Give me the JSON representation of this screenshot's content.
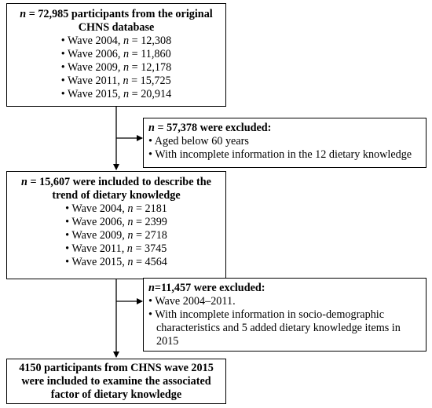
{
  "box1": {
    "n_label": "n",
    "title_rest": " = 72,985 participants from the original",
    "title_line2": "CHNS database",
    "waves": [
      {
        "prefix": "• Wave 2004, ",
        "n": "n",
        "value": " = 12,308"
      },
      {
        "prefix": "• Wave 2006, ",
        "n": "n",
        "value": " = 11,860"
      },
      {
        "prefix": "• Wave 2009, ",
        "n": "n",
        "value": " = 12,178"
      },
      {
        "prefix": "• Wave 2011, ",
        "n": "n",
        "value": " = 15,725"
      },
      {
        "prefix": "• Wave 2015, ",
        "n": "n",
        "value": " = 20,914"
      }
    ]
  },
  "exclusion1": {
    "n_label": "n",
    "header_rest": " = 57,378 were excluded:",
    "items": [
      "• Aged below 60 years",
      "• With incomplete information in the 12 dietary knowledge"
    ]
  },
  "box2": {
    "n_label": "n",
    "title_rest": " = 15,607 were included to describe the",
    "title_line2": "trend of dietary knowledge",
    "waves": [
      {
        "prefix": "• Wave 2004, ",
        "n": "n",
        "value": " = 2181"
      },
      {
        "prefix": "• Wave 2006, ",
        "n": "n",
        "value": " = 2399"
      },
      {
        "prefix": "• Wave 2009, ",
        "n": "n",
        "value": " = 2718"
      },
      {
        "prefix": "• Wave 2011, ",
        "n": "n",
        "value": " = 3745"
      },
      {
        "prefix": "• Wave 2015, ",
        "n": "n",
        "value": " = 4564"
      }
    ]
  },
  "exclusion2": {
    "n_label": "n",
    "header_rest": "=11,457 were excluded:",
    "items": [
      "• Wave 2004–2011.",
      "• With incomplete information in socio-demographic characteristics and 5 added dietary knowledge items in 2015"
    ]
  },
  "box3": {
    "lines": [
      "4150 participants from CHNS wave 2015",
      "were included to examine the associated",
      "factor of dietary knowledge"
    ]
  }
}
